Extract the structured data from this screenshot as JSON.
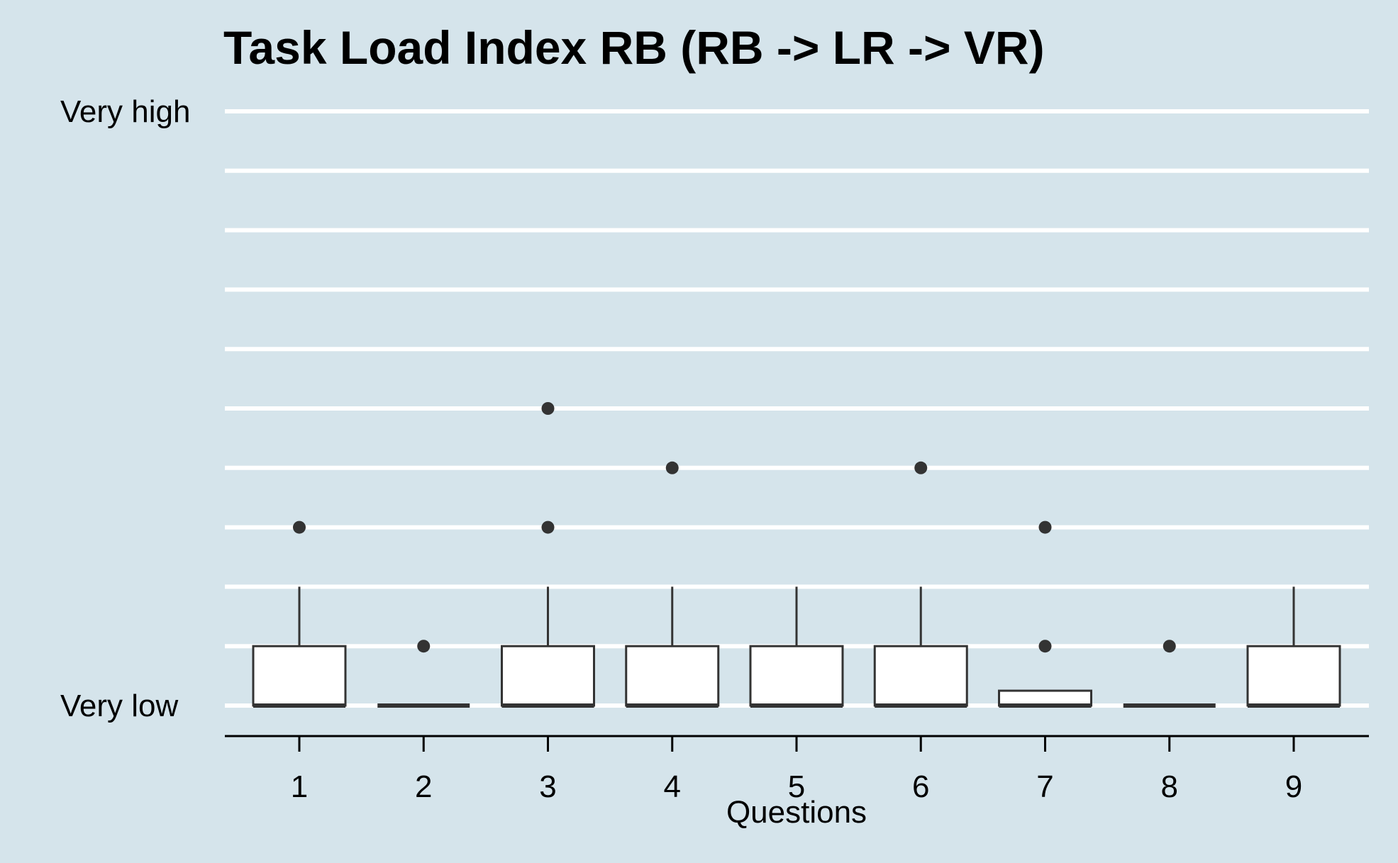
{
  "chart_data": {
    "type": "box",
    "title": "Task Load Index RB (RB -> LR -> VR)",
    "xlabel": "Questions",
    "ylabel": "",
    "y_tick_labels": {
      "low": "Very low",
      "high": "Very high"
    },
    "ylim": [
      1,
      11
    ],
    "grid": "horizontal",
    "categories": [
      "1",
      "2",
      "3",
      "4",
      "5",
      "6",
      "7",
      "8",
      "9"
    ],
    "boxes": [
      {
        "q": "1",
        "min": 1,
        "q1": 1,
        "median": 1,
        "q3": 2,
        "max": 3,
        "outliers": [
          4
        ]
      },
      {
        "q": "2",
        "min": 1,
        "q1": 1,
        "median": 1,
        "q3": 1,
        "max": 1,
        "outliers": [
          2
        ]
      },
      {
        "q": "3",
        "min": 1,
        "q1": 1,
        "median": 1,
        "q3": 2,
        "max": 3,
        "outliers": [
          4,
          6
        ]
      },
      {
        "q": "4",
        "min": 1,
        "q1": 1,
        "median": 1,
        "q3": 2,
        "max": 3,
        "outliers": [
          5
        ]
      },
      {
        "q": "5",
        "min": 1,
        "q1": 1,
        "median": 1,
        "q3": 2,
        "max": 3,
        "outliers": []
      },
      {
        "q": "6",
        "min": 1,
        "q1": 1,
        "median": 1,
        "q3": 2,
        "max": 3,
        "outliers": [
          5
        ]
      },
      {
        "q": "7",
        "min": 1,
        "q1": 1,
        "median": 1,
        "q3": 1.25,
        "max": 1.25,
        "outliers": [
          2,
          4
        ]
      },
      {
        "q": "8",
        "min": 1,
        "q1": 1,
        "median": 1,
        "q3": 1,
        "max": 1,
        "outliers": [
          2
        ]
      },
      {
        "q": "9",
        "min": 1,
        "q1": 1,
        "median": 1,
        "q3": 2,
        "max": 3,
        "outliers": []
      }
    ],
    "colors": {
      "background": "#d5e4eb",
      "grid": "#ffffff",
      "box_fill": "#ffffff",
      "box_stroke": "#333333",
      "outlier": "#333333"
    }
  }
}
